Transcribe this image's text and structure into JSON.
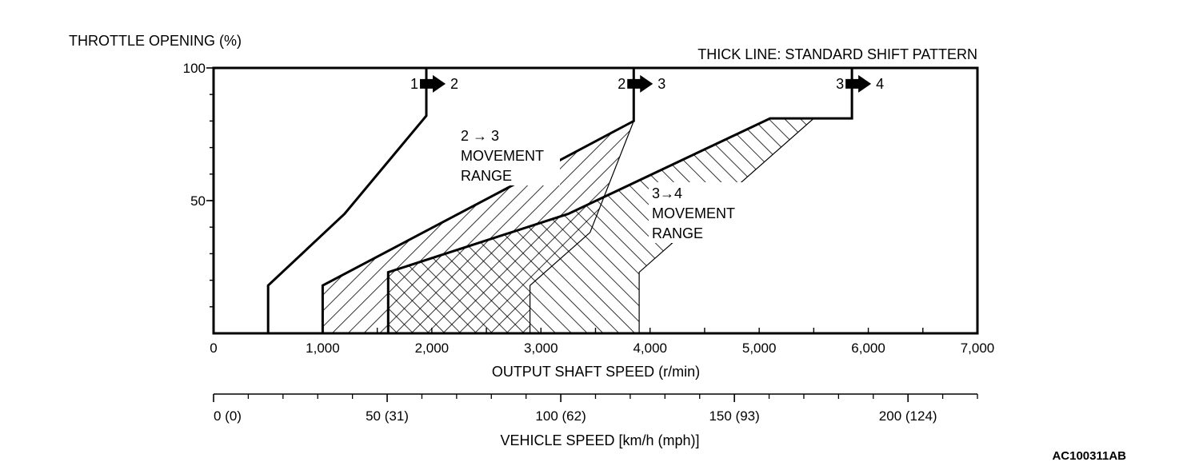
{
  "chart_data": {
    "type": "line",
    "y_axis_title": "THROTTLE OPENING (%)",
    "legend_note": "THICK LINE: STANDARD SHIFT PATTERN",
    "x_axis_title": "OUTPUT SHAFT SPEED (r/min)",
    "x_range": [
      0,
      7000
    ],
    "y_range": [
      0,
      100
    ],
    "x_ticks": [
      {
        "v": 0,
        "label": "0"
      },
      {
        "v": 1000,
        "label": "1,000"
      },
      {
        "v": 2000,
        "label": "2,000"
      },
      {
        "v": 3000,
        "label": "3,000"
      },
      {
        "v": 4000,
        "label": "4,000"
      },
      {
        "v": 5000,
        "label": "5,000"
      },
      {
        "v": 6000,
        "label": "6,000"
      },
      {
        "v": 7000,
        "label": "7,000"
      }
    ],
    "y_ticks": [
      {
        "v": 50,
        "label": "50"
      },
      {
        "v": 100,
        "label": "100"
      }
    ],
    "secondary_axis": {
      "title": "VEHICLE SPEED [km/h (mph)]",
      "range": [
        0,
        220
      ],
      "ticks": [
        {
          "v": 0,
          "label": "0 (0)"
        },
        {
          "v": 50,
          "label": "50 (31)"
        },
        {
          "v": 100,
          "label": "100 (62)"
        },
        {
          "v": 150,
          "label": "150 (93)"
        },
        {
          "v": 200,
          "label": "200 (124)"
        }
      ]
    },
    "shift_lines": [
      {
        "from": "1",
        "to": "2",
        "points": [
          [
            500,
            0
          ],
          [
            500,
            18
          ],
          [
            1200,
            45
          ],
          [
            1950,
            82
          ],
          [
            1950,
            100
          ]
        ]
      },
      {
        "from": "2",
        "to": "3",
        "points": [
          [
            1000,
            0
          ],
          [
            1000,
            18
          ],
          [
            2750,
            56
          ],
          [
            3850,
            80
          ],
          [
            3850,
            100
          ]
        ]
      },
      {
        "from": "3",
        "to": "4",
        "points": [
          [
            1600,
            0
          ],
          [
            1600,
            23
          ],
          [
            3250,
            45
          ],
          [
            5100,
            81
          ],
          [
            5850,
            81
          ],
          [
            5850,
            100
          ]
        ]
      }
    ],
    "movement_ranges": [
      {
        "label_lines": [
          "2 → 3",
          "MOVEMENT",
          "RANGE"
        ],
        "polygon": [
          [
            1000,
            0
          ],
          [
            1000,
            18
          ],
          [
            2750,
            56
          ],
          [
            3850,
            80
          ],
          [
            3450,
            38
          ],
          [
            2900,
            18
          ],
          [
            2900,
            0
          ]
        ]
      },
      {
        "label_lines": [
          "3→4",
          "MOVEMENT",
          "RANGE"
        ],
        "polygon": [
          [
            1600,
            0
          ],
          [
            1600,
            23
          ],
          [
            3250,
            45
          ],
          [
            5100,
            81
          ],
          [
            5500,
            81
          ],
          [
            3900,
            23
          ],
          [
            3900,
            0
          ]
        ]
      }
    ],
    "figure_code": "AC100311AB"
  }
}
